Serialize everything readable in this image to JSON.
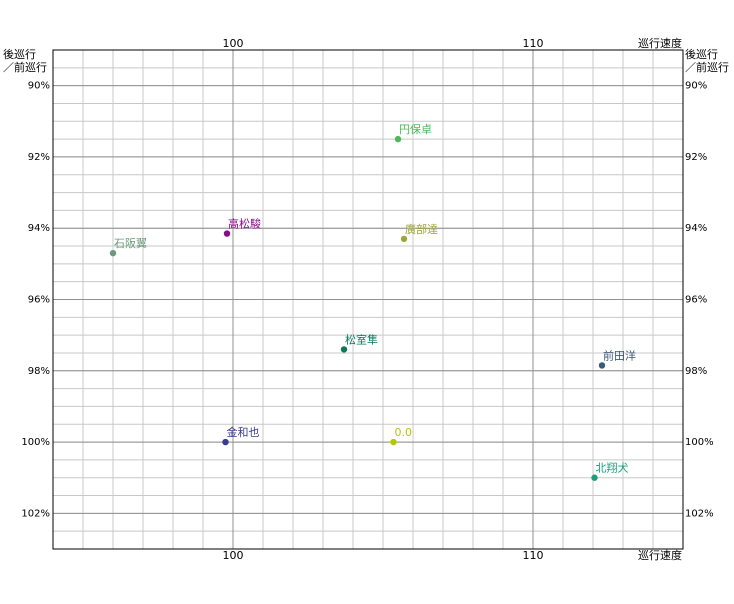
{
  "chart_data": {
    "type": "scatter",
    "x_label": "巡行速度",
    "y_label": [
      "後巡行",
      "／前巡行"
    ],
    "xlim": [
      94,
      115
    ],
    "ylim": [
      89,
      103
    ],
    "y_inverted": true,
    "xticks": [
      100,
      110
    ],
    "yticks": [
      {
        "value": 90,
        "label": "90%"
      },
      {
        "value": 92,
        "label": "92%"
      },
      {
        "value": 94,
        "label": "94%"
      },
      {
        "value": 96,
        "label": "96%"
      },
      {
        "value": 98,
        "label": "98%"
      },
      {
        "value": 100,
        "label": "100%"
      },
      {
        "value": 102,
        "label": "102%"
      }
    ],
    "x_grid": [
      95,
      96,
      97,
      98,
      99,
      100,
      101,
      102,
      103,
      104,
      105,
      106,
      107,
      108,
      109,
      110,
      111,
      112,
      113,
      114
    ],
    "y_grid": [
      89.5,
      90,
      90.5,
      91,
      91.5,
      92,
      92.5,
      93,
      93.5,
      94,
      94.5,
      95,
      95.5,
      96,
      96.5,
      97,
      97.5,
      98,
      98.5,
      99,
      99.5,
      100,
      100.5,
      101,
      101.5,
      102,
      102.5
    ],
    "grid": true,
    "points": [
      {
        "name": "円保卓",
        "color": "#4cba5c",
        "x": 105.5,
        "y": 91.5
      },
      {
        "name": "高松駿",
        "color": "#8b0a8b",
        "x": 99.8,
        "y": 94.15
      },
      {
        "name": "石阪翼",
        "color": "#6a9a7a",
        "x": 96.0,
        "y": 94.7
      },
      {
        "name": "廣部達",
        "color": "#9ca63c",
        "x": 105.7,
        "y": 94.3
      },
      {
        "name": "松室隼",
        "color": "#0a7a5a",
        "x": 103.7,
        "y": 97.4
      },
      {
        "name": "前田洋",
        "color": "#3a5a7a",
        "x": 112.3,
        "y": 97.85
      },
      {
        "name": "金和也",
        "color": "#3c3c8c",
        "x": 99.75,
        "y": 100.0
      },
      {
        "name": "0.0",
        "color": "#b4c800",
        "x": 105.35,
        "y": 100.0
      },
      {
        "name": "北翔犬",
        "color": "#1aa07a",
        "x": 112.05,
        "y": 101.0
      }
    ]
  }
}
